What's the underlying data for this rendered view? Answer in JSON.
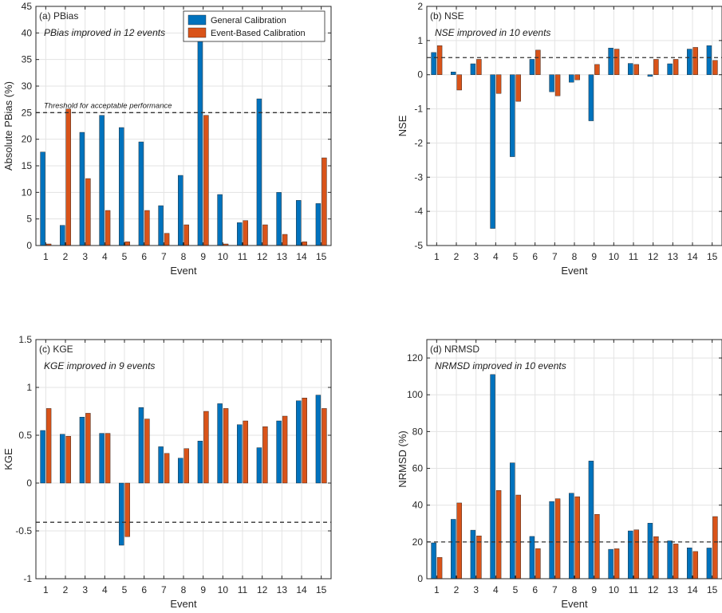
{
  "colors": {
    "general": "#0072BD",
    "event": "#D95319",
    "grid": "#e3e3e3",
    "axis": "#262626"
  },
  "legend": {
    "general": "General Calibration",
    "event": "Event-Based Calibration"
  },
  "chart_data": [
    {
      "type": "bar",
      "panel_label": "(a) PBias",
      "note": "PBias improved in 12 events",
      "threshold": 25,
      "threshold_label": "Threshold for acceptable performance",
      "xlabel": "Event",
      "ylabel": "Absolute PBias (%)",
      "ylim": [
        0,
        45
      ],
      "yticks": [
        0,
        5,
        10,
        15,
        20,
        25,
        30,
        35,
        40,
        45
      ],
      "ytick_labels": [
        "0",
        "5",
        "10",
        "15",
        "20",
        "25",
        "30",
        "35",
        "40",
        "45"
      ],
      "categories": [
        "1",
        "2",
        "3",
        "4",
        "5",
        "6",
        "7",
        "8",
        "9",
        "10",
        "11",
        "12",
        "13",
        "14",
        "15"
      ],
      "show_legend": true,
      "series": [
        {
          "name": "General Calibration",
          "values": [
            17.6,
            3.8,
            21.3,
            24.5,
            22.2,
            19.5,
            7.5,
            13.2,
            44.0,
            9.6,
            4.3,
            27.6,
            10.0,
            8.5,
            7.9
          ]
        },
        {
          "name": "Event-Based Calibration",
          "values": [
            0.3,
            25.7,
            12.6,
            6.6,
            0.7,
            6.6,
            2.3,
            3.9,
            24.5,
            0.3,
            4.7,
            3.9,
            2.1,
            0.7,
            16.5
          ]
        }
      ]
    },
    {
      "type": "bar",
      "panel_label": "(b) NSE",
      "note": "NSE improved in 10 events",
      "threshold": 0.5,
      "xlabel": "Event",
      "ylabel": "NSE",
      "ylim": [
        -5,
        2
      ],
      "yticks": [
        -5,
        -4,
        -3,
        -2,
        -1,
        0,
        1,
        2
      ],
      "ytick_labels": [
        "-5",
        "-4",
        "-3",
        "-2",
        "-1",
        "0",
        "1",
        "2"
      ],
      "categories": [
        "1",
        "2",
        "3",
        "4",
        "5",
        "6",
        "7",
        "8",
        "9",
        "10",
        "11",
        "12",
        "13",
        "14",
        "15"
      ],
      "show_legend": false,
      "series": [
        {
          "name": "General Calibration",
          "values": [
            0.65,
            0.08,
            0.32,
            -4.5,
            -2.4,
            0.45,
            -0.5,
            -0.22,
            -1.35,
            0.78,
            0.33,
            -0.05,
            0.32,
            0.75,
            0.85
          ]
        },
        {
          "name": "Event-Based Calibration",
          "values": [
            0.85,
            -0.45,
            0.45,
            -0.55,
            -0.78,
            0.72,
            -0.62,
            -0.15,
            0.3,
            0.75,
            0.3,
            0.45,
            0.45,
            0.8,
            0.42
          ]
        }
      ]
    },
    {
      "type": "bar",
      "panel_label": "(c) KGE",
      "note": "KGE improved in 9 events",
      "threshold": -0.41,
      "xlabel": "Event",
      "ylabel": "KGE",
      "ylim": [
        -1,
        1.5
      ],
      "yticks": [
        -1,
        -0.5,
        0,
        0.5,
        1,
        1.5
      ],
      "ytick_labels": [
        "-1",
        "-0.5",
        "0",
        "0.5",
        "1",
        "1.5"
      ],
      "categories": [
        "1",
        "2",
        "3",
        "4",
        "5",
        "6",
        "7",
        "8",
        "9",
        "10",
        "11",
        "12",
        "13",
        "14",
        "15"
      ],
      "show_legend": false,
      "series": [
        {
          "name": "General Calibration",
          "values": [
            0.55,
            0.51,
            0.69,
            0.52,
            -0.65,
            0.79,
            0.38,
            0.26,
            0.44,
            0.83,
            0.61,
            0.37,
            0.65,
            0.86,
            0.92
          ]
        },
        {
          "name": "Event-Based Calibration",
          "values": [
            0.78,
            0.49,
            0.73,
            0.52,
            -0.56,
            0.67,
            0.31,
            0.36,
            0.75,
            0.78,
            0.65,
            0.59,
            0.7,
            0.89,
            0.78
          ]
        }
      ]
    },
    {
      "type": "bar",
      "panel_label": "(d) NRMSD",
      "note": "NRMSD improved in 10 events",
      "threshold": 20,
      "xlabel": "Event",
      "ylabel": "NRMSD (%)",
      "ylim": [
        0,
        130
      ],
      "yticks": [
        0,
        20,
        40,
        60,
        80,
        100,
        120
      ],
      "ytick_labels": [
        "0",
        "20",
        "40",
        "60",
        "80",
        "100",
        "120"
      ],
      "categories": [
        "1",
        "2",
        "3",
        "4",
        "5",
        "6",
        "7",
        "8",
        "9",
        "10",
        "11",
        "12",
        "13",
        "14",
        "15"
      ],
      "show_legend": false,
      "series": [
        {
          "name": "General Calibration",
          "values": [
            19.5,
            32.3,
            26.4,
            111,
            63,
            23,
            42,
            46.5,
            64,
            16,
            26,
            30.2,
            20.6,
            16.8,
            16.7
          ]
        },
        {
          "name": "Event-Based Calibration",
          "values": [
            11.6,
            41.2,
            23.3,
            48,
            45.5,
            16.4,
            43.5,
            44.6,
            35,
            16.3,
            26.6,
            22.9,
            18.9,
            14.8,
            33.8
          ]
        }
      ]
    }
  ]
}
